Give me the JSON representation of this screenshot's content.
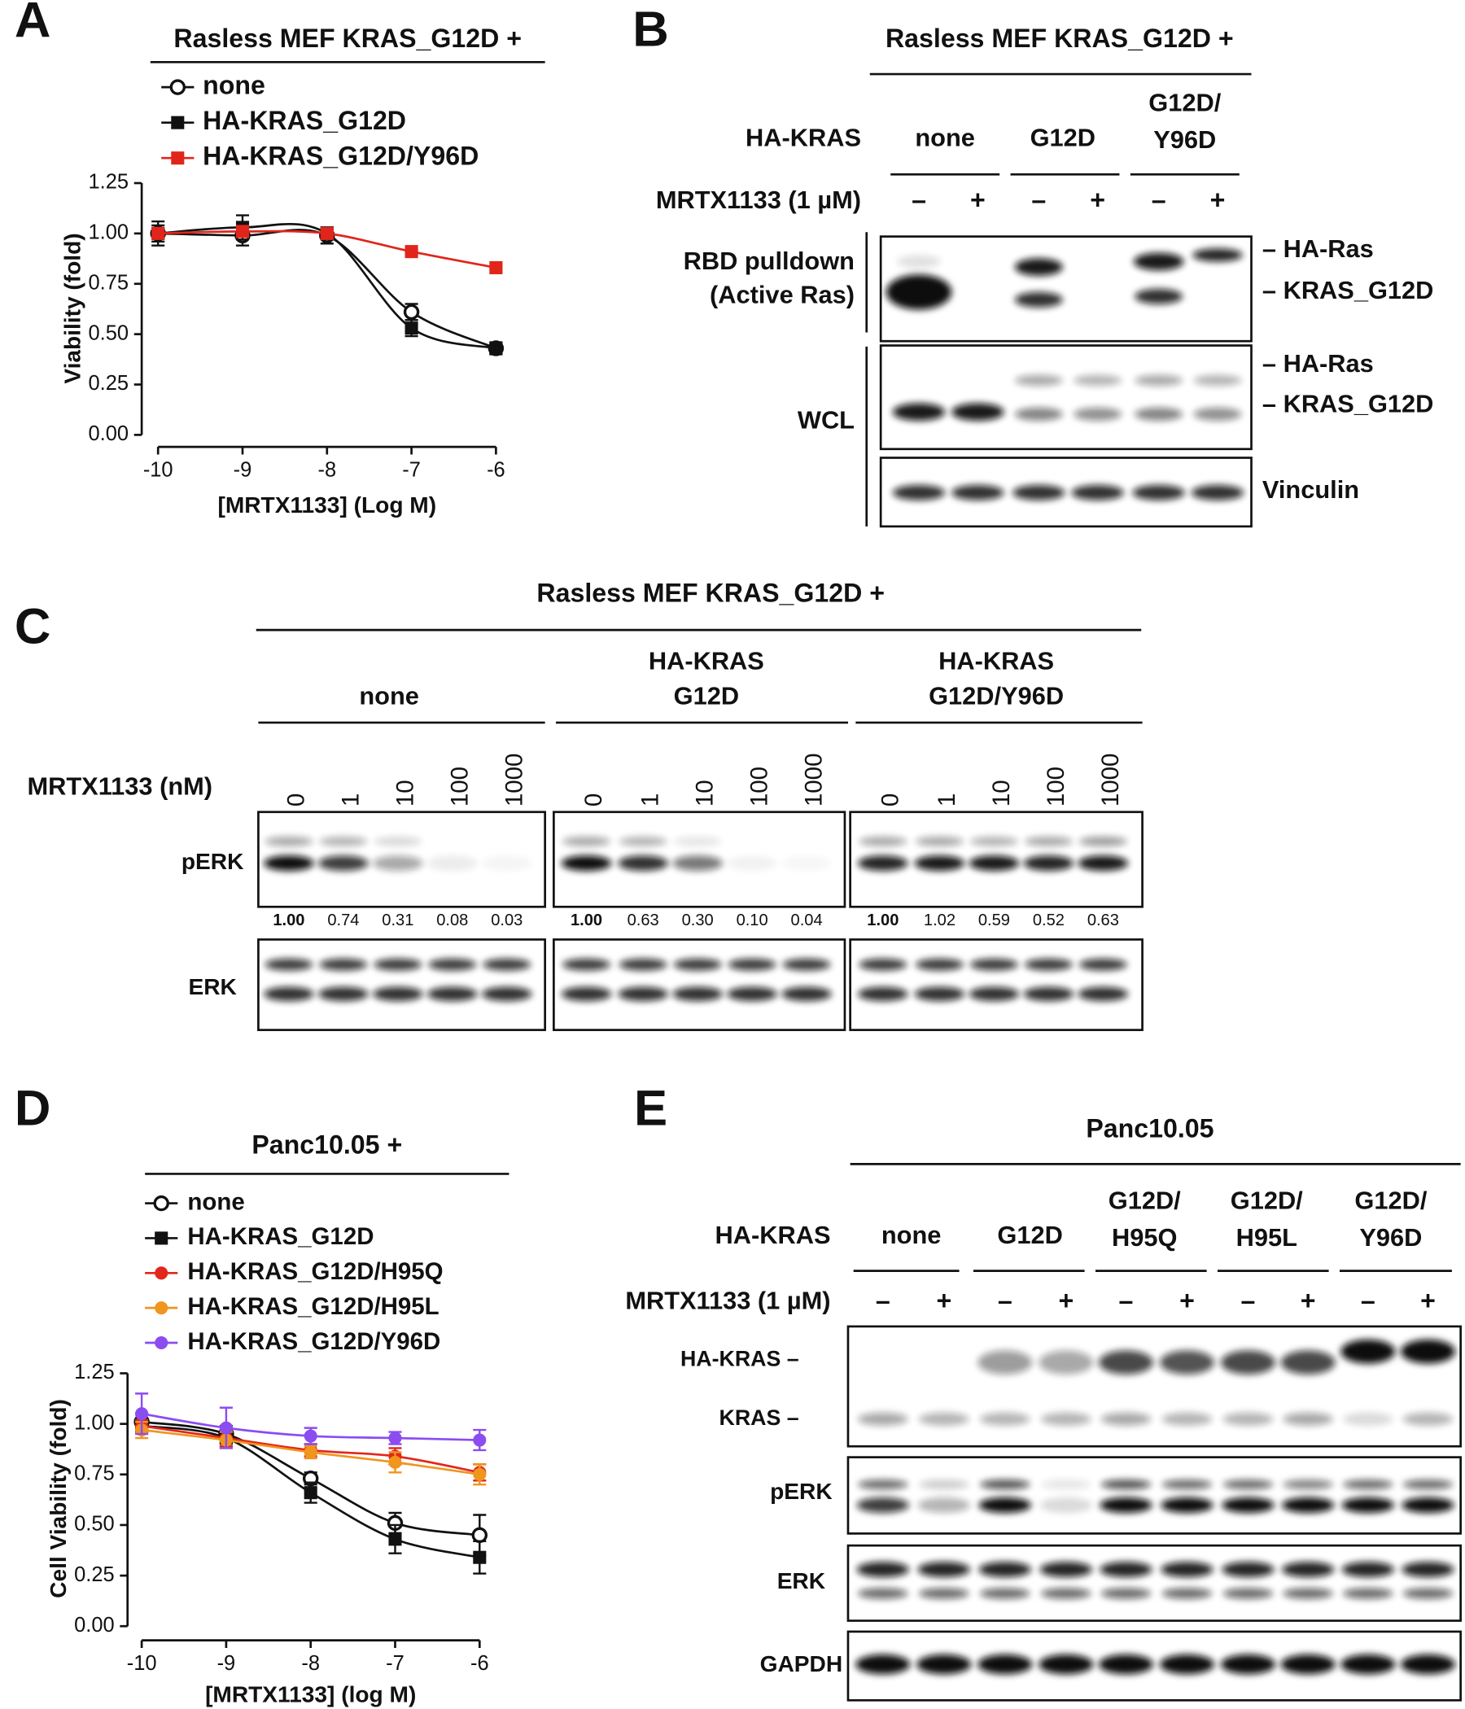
{
  "panel_labels": [
    "A",
    "B",
    "C",
    "D",
    "E"
  ],
  "chart_data": [
    {
      "type": "scatter",
      "title": "Rasless MEF KRAS_G12D +",
      "x_label": "[MRTX1133] (Log M)",
      "y_label": "Viability (fold)",
      "x": [
        -10,
        -9,
        -8,
        -7,
        -6
      ],
      "xlim": [
        -10,
        -6
      ],
      "xticks": [
        -10,
        -9,
        -8,
        -7,
        -6
      ],
      "ylim": [
        0,
        1.25
      ],
      "yticks": [
        {
          "value": 0,
          "label": "0.00"
        },
        {
          "value": 0.25,
          "label": "0.25"
        },
        {
          "value": 0.5,
          "label": "0.50"
        },
        {
          "value": 0.75,
          "label": "0.75"
        },
        {
          "value": 1,
          "label": "1.00"
        },
        {
          "value": 1.25,
          "label": "1.25"
        }
      ],
      "series": [
        {
          "name": "none",
          "color": "#111111",
          "marker": "open-circle",
          "values": [
            1.0,
            0.99,
            0.99,
            0.61,
            0.43
          ],
          "errors": [
            0.06,
            0.05,
            0.04,
            0.04,
            0.03
          ]
        },
        {
          "name": "HA-KRAS_G12D",
          "color": "#111111",
          "marker": "square",
          "values": [
            1.0,
            1.03,
            1.0,
            0.53,
            0.43
          ],
          "errors": [
            0.04,
            0.06,
            0.03,
            0.04,
            0.02
          ]
        },
        {
          "name": "HA-KRAS_G12D/Y96D",
          "color": "#e0261b",
          "marker": "square",
          "values": [
            1.0,
            1.01,
            1.0,
            0.91,
            0.83
          ],
          "errors": [
            0.02,
            0.02,
            0.02,
            0.01,
            0.01
          ]
        }
      ]
    },
    {
      "type": "scatter",
      "title": "Panc10.05 +",
      "x_label": "[MRTX1133] (log M)",
      "y_label": "Cell Viability (fold)",
      "x": [
        -10,
        -9,
        -8,
        -7,
        -6
      ],
      "xlim": [
        -10,
        -6
      ],
      "xticks": [
        -10,
        -9,
        -8,
        -7,
        -6
      ],
      "ylim": [
        0,
        1.25
      ],
      "yticks": [
        {
          "value": 0,
          "label": "0.00"
        },
        {
          "value": 0.25,
          "label": "0.25"
        },
        {
          "value": 0.5,
          "label": "0.50"
        },
        {
          "value": 0.75,
          "label": "0.75"
        },
        {
          "value": 1,
          "label": "1.00"
        },
        {
          "value": 1.25,
          "label": "1.25"
        }
      ],
      "series": [
        {
          "name": "none",
          "color": "#111111",
          "marker": "open-circle",
          "values": [
            1.01,
            0.95,
            0.73,
            0.51,
            0.45
          ],
          "errors": [
            0.04,
            0.04,
            0.03,
            0.05,
            0.1
          ]
        },
        {
          "name": "HA-KRAS_G12D",
          "color": "#111111",
          "marker": "square",
          "values": [
            0.99,
            0.93,
            0.66,
            0.43,
            0.34
          ],
          "errors": [
            0.03,
            0.04,
            0.05,
            0.07,
            0.08
          ]
        },
        {
          "name": "HA-KRAS_G12D/H95Q",
          "color": "#e3261b",
          "marker": "circle",
          "values": [
            0.99,
            0.93,
            0.87,
            0.84,
            0.76
          ],
          "errors": [
            0.03,
            0.04,
            0.03,
            0.04,
            0.04
          ]
        },
        {
          "name": "HA-KRAS_G12D/H95L",
          "color": "#f0951e",
          "marker": "circle",
          "values": [
            0.97,
            0.92,
            0.86,
            0.81,
            0.75
          ],
          "errors": [
            0.04,
            0.04,
            0.03,
            0.05,
            0.05
          ]
        },
        {
          "name": "HA-KRAS_G12D/Y96D",
          "color": "#8b4cf0",
          "marker": "circle",
          "values": [
            1.05,
            0.98,
            0.94,
            0.93,
            0.92
          ],
          "errors": [
            0.1,
            0.1,
            0.04,
            0.03,
            0.05
          ]
        }
      ]
    }
  ],
  "blot_b": {
    "title": "Rasless MEF KRAS_G12D +",
    "row_label": "HA-KRAS",
    "groups": [
      [
        "none"
      ],
      [
        "G12D"
      ],
      [
        "G12D/",
        "Y96D"
      ]
    ],
    "treatment_label": "MRTX1133 (1 µM)",
    "lane_signs": [
      "–",
      "+",
      "–",
      "+",
      "–",
      "+"
    ],
    "blot_labels_left": [
      [
        "RBD pulldown",
        "(Active Ras)"
      ],
      [
        "WCL"
      ]
    ],
    "band_labels_right": [
      "– HA-Ras",
      "– KRAS_G12D",
      "– HA-Ras",
      "– KRAS_G12D",
      "Vinculin"
    ]
  },
  "blot_c": {
    "title": "Rasless MEF KRAS_G12D +",
    "groups": [
      [
        "none"
      ],
      [
        "HA-KRAS",
        "G12D"
      ],
      [
        "HA-KRAS",
        "G12D/Y96D"
      ]
    ],
    "treatment_label": "MRTX1133 (nM)",
    "concentrations": [
      "0",
      "1",
      "10",
      "100",
      "1000"
    ],
    "rows": [
      "pERK",
      "ERK"
    ],
    "quantification": [
      [
        "1.00",
        "0.74",
        "0.31",
        "0.08",
        "0.03"
      ],
      [
        "1.00",
        "0.63",
        "0.30",
        "0.10",
        "0.04"
      ],
      [
        "1.00",
        "1.02",
        "0.59",
        "0.52",
        "0.63"
      ]
    ]
  },
  "blot_e": {
    "title": "Panc10.05",
    "row_label": "HA-KRAS",
    "groups": [
      [
        "none"
      ],
      [
        "G12D"
      ],
      [
        "G12D/",
        "H95Q"
      ],
      [
        "G12D/",
        "H95L"
      ],
      [
        "G12D/",
        "Y96D"
      ]
    ],
    "treatment_label": "MRTX1133 (1 µM)",
    "lane_signs": [
      "–",
      "+",
      "–",
      "+",
      "–",
      "+",
      "–",
      "+",
      "–",
      "+"
    ],
    "band_labels_left": [
      "HA-KRAS –",
      "KRAS –"
    ],
    "rows": [
      "pERK",
      "ERK",
      "GAPDH"
    ]
  }
}
